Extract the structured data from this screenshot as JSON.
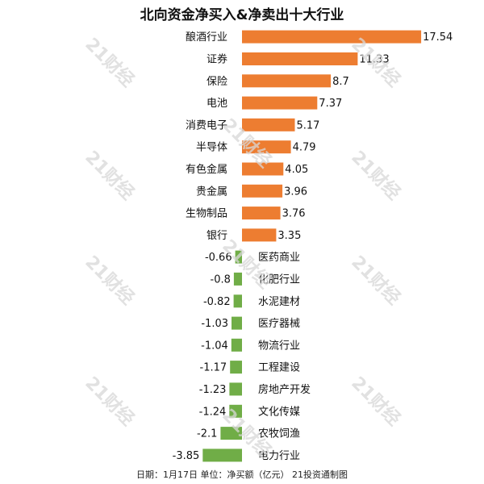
{
  "chart_data": {
    "type": "bar",
    "orientation": "horizontal",
    "title": "北向资金净买入&净卖出十大行业",
    "note": "日期：1月17日 单位：净买额（亿元） 21投资通制图",
    "categories": [
      "酿酒行业",
      "证券",
      "保险",
      "电池",
      "消费电子",
      "半导体",
      "有色金属",
      "贵金属",
      "生物制品",
      "银行",
      "医药商业",
      "化肥行业",
      "水泥建材",
      "医疗器械",
      "物流行业",
      "工程建设",
      "房地产开发",
      "文化传媒",
      "农牧饲渔",
      "电力行业"
    ],
    "values": [
      17.54,
      11.33,
      8.7,
      7.37,
      5.17,
      4.79,
      4.05,
      3.96,
      3.76,
      3.35,
      -0.66,
      -0.8,
      -0.82,
      -1.03,
      -1.04,
      -1.17,
      -1.23,
      -1.24,
      -2.1,
      -3.85
    ],
    "value_labels": [
      "17.54",
      "11.33",
      "8.7",
      "7.37",
      "5.17",
      "4.79",
      "4.05",
      "3.96",
      "3.76",
      "3.35",
      "-0.66",
      "-0.8",
      "-0.82",
      "-1.03",
      "-1.04",
      "-1.17",
      "-1.23",
      "-1.24",
      "-2.1",
      "-3.85"
    ],
    "colors": {
      "positive": "#ed7d31",
      "negative": "#70ad47"
    },
    "grid": false,
    "legend": "none"
  },
  "watermark": {
    "text": "21财经"
  }
}
